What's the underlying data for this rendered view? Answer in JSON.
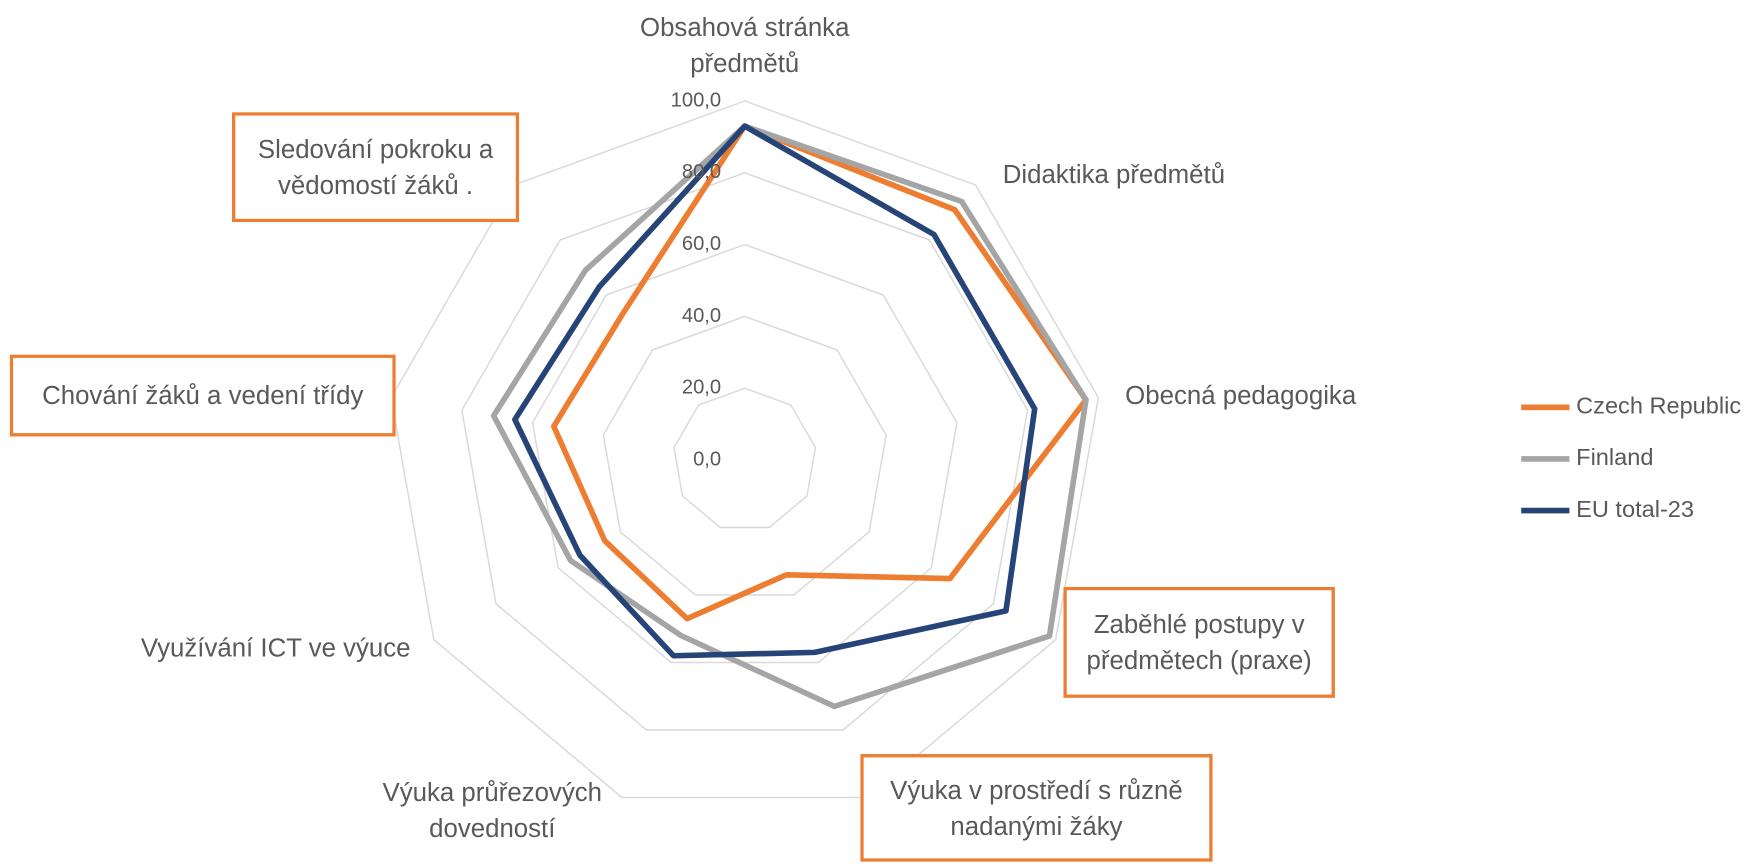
{
  "chart_data": {
    "type": "radar",
    "categories": [
      "Obsahová stránka předmětů",
      "Didaktika předmětů",
      "Obecná pedagogika",
      "Zaběhlé postupy v předmětech (praxe)",
      "Výuka v prostředí s různě nadanými žáky",
      "Výuka průřezových dovedností",
      "Využívání ICT ve výuce",
      "Chování žáků a vedení třídy",
      "Sledování pokroku a vědomostí žáků ."
    ],
    "series": [
      {
        "name": "Czech Republic",
        "color": "#ED7D31",
        "values": [
          93,
          91,
          96.5,
          66,
          34,
          47,
          45,
          54,
          53
        ]
      },
      {
        "name": "Finland",
        "color": "#A5A5A5",
        "values": [
          93,
          94,
          96.5,
          98,
          73,
          52,
          56,
          71,
          69
        ]
      },
      {
        "name": "EU total-23",
        "color": "#264478",
        "values": [
          93,
          82,
          82,
          84,
          57,
          58,
          53,
          65,
          63
        ]
      }
    ],
    "ylim": [
      0,
      100
    ],
    "yticks": [
      {
        "value": 0,
        "label": "0,0"
      },
      {
        "value": 20,
        "label": "20,0"
      },
      {
        "value": 40,
        "label": "40,0"
      },
      {
        "value": 60,
        "label": "60,0"
      },
      {
        "value": 80,
        "label": "80,0"
      },
      {
        "value": 100,
        "label": "100,0"
      }
    ],
    "grid": true,
    "legend": "right"
  }
}
